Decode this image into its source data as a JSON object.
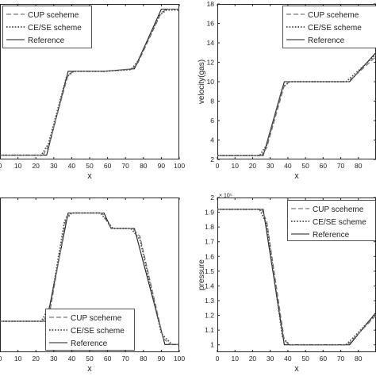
{
  "chart_data": [
    {
      "type": "line",
      "xlabel": "x",
      "ylabel": "",
      "xlim": [
        0,
        100
      ],
      "ylim": [
        0,
        18
      ],
      "x_ticks": [
        "0",
        "10",
        "20",
        "30",
        "40",
        "50",
        "60",
        "70",
        "80",
        "90",
        "100"
      ],
      "y_ticks": [],
      "exponent": "",
      "legend": [
        "CUP sceheme",
        "CE/SE scheme",
        "Reference"
      ],
      "legend_position": "top-left",
      "series": [
        {
          "name": "Reference",
          "x": [
            0,
            26,
            38,
            58,
            75,
            90,
            100
          ],
          "y": [
            0.5,
            0.5,
            10.2,
            10.2,
            10.5,
            17.4,
            17.4
          ]
        },
        {
          "name": "CUP sceheme",
          "x": [
            0,
            24,
            27,
            38,
            41,
            58,
            74,
            77,
            90,
            93,
            100
          ],
          "y": [
            0.5,
            0.5,
            1.5,
            9.8,
            10.2,
            10.2,
            10.5,
            11.2,
            17.0,
            17.4,
            17.4
          ]
        },
        {
          "name": "CE/SE scheme",
          "x": [
            0,
            23,
            27,
            37,
            41,
            58,
            73,
            77,
            89,
            93,
            100
          ],
          "y": [
            0.5,
            0.5,
            1.8,
            9.5,
            10.2,
            10.2,
            10.4,
            11.4,
            16.7,
            17.3,
            17.3
          ]
        }
      ]
    },
    {
      "type": "line",
      "xlabel": "x",
      "ylabel": "velocity(gas)",
      "xlim": [
        0,
        90
      ],
      "ylim": [
        2,
        18
      ],
      "x_ticks": [
        "0",
        "10",
        "20",
        "30",
        "40",
        "50",
        "60",
        "70",
        "80"
      ],
      "y_ticks": [
        "2",
        "4",
        "6",
        "8",
        "10",
        "12",
        "14",
        "16",
        "18"
      ],
      "exponent": "",
      "legend": [
        "CUP sceheme",
        "CE/SE scheme",
        "Reference"
      ],
      "legend_position": "top-right",
      "series": [
        {
          "name": "Reference",
          "x": [
            0,
            26,
            38,
            75,
            90
          ],
          "y": [
            2.4,
            2.4,
            10.0,
            10.0,
            13.0
          ]
        },
        {
          "name": "CUP sceheme",
          "x": [
            0,
            25,
            28,
            38,
            41,
            74,
            78,
            90
          ],
          "y": [
            2.4,
            2.4,
            3.2,
            9.6,
            10.0,
            10.0,
            10.6,
            12.6
          ]
        },
        {
          "name": "CE/SE scheme",
          "x": [
            0,
            24,
            28,
            37,
            41,
            73,
            78,
            90
          ],
          "y": [
            2.4,
            2.4,
            3.5,
            9.4,
            10.0,
            10.0,
            10.8,
            12.8
          ]
        }
      ]
    },
    {
      "type": "line",
      "xlabel": "x",
      "ylabel": "",
      "xlim": [
        0,
        100
      ],
      "ylim": [
        0,
        20
      ],
      "x_ticks": [
        "0",
        "10",
        "20",
        "30",
        "40",
        "50",
        "60",
        "70",
        "80",
        "90",
        "100"
      ],
      "y_ticks": [],
      "exponent": "",
      "legend": [
        "CUP sceheme",
        "CE/SE scheme",
        "Reference"
      ],
      "legend_position": "bottom-center",
      "series": [
        {
          "name": "Reference",
          "x": [
            0,
            26,
            38,
            58,
            62,
            75,
            92,
            100
          ],
          "y": [
            4.0,
            4.0,
            18.0,
            18.0,
            16.0,
            16.0,
            1.0,
            1.0
          ]
        },
        {
          "name": "CUP sceheme",
          "x": [
            0,
            24,
            28,
            37,
            40,
            57,
            62,
            74,
            78,
            91,
            95,
            100
          ],
          "y": [
            4.0,
            4.0,
            5.5,
            17.5,
            18.0,
            18.0,
            16.0,
            16.0,
            15.0,
            1.8,
            1.0,
            1.0
          ]
        },
        {
          "name": "CE/SE scheme",
          "x": [
            0,
            23,
            28,
            36,
            40,
            56,
            63,
            73,
            78,
            90,
            96,
            100
          ],
          "y": [
            4.0,
            4.0,
            6.0,
            17.0,
            18.0,
            18.0,
            16.0,
            16.0,
            14.6,
            2.4,
            1.0,
            1.0
          ]
        }
      ]
    },
    {
      "type": "line",
      "xlabel": "x",
      "ylabel": "pressure",
      "xlim": [
        0,
        90
      ],
      "ylim": [
        0.95,
        2.0
      ],
      "x_ticks": [
        "0",
        "10",
        "20",
        "30",
        "40",
        "50",
        "60",
        "70",
        "80"
      ],
      "y_ticks": [
        "1",
        "1.1",
        "1.2",
        "1.3",
        "1.4",
        "1.5",
        "1.6",
        "1.7",
        "1.8",
        "1.9",
        "2"
      ],
      "exponent": "× 10⁵",
      "legend": [
        "CUP sceheme",
        "CE/SE scheme",
        "Reference"
      ],
      "legend_position": "top-right",
      "series": [
        {
          "name": "Reference",
          "x": [
            0,
            26,
            38,
            75,
            90
          ],
          "y": [
            1.92,
            1.92,
            1.0,
            1.0,
            1.22
          ]
        },
        {
          "name": "CUP sceheme",
          "x": [
            0,
            25,
            28,
            38,
            41,
            74,
            78,
            90
          ],
          "y": [
            1.92,
            1.92,
            1.84,
            1.03,
            1.0,
            1.0,
            1.05,
            1.2
          ]
        },
        {
          "name": "CE/SE scheme",
          "x": [
            0,
            24,
            28,
            37,
            41,
            73,
            78,
            90
          ],
          "y": [
            1.92,
            1.92,
            1.82,
            1.05,
            1.0,
            1.0,
            1.06,
            1.21
          ]
        }
      ]
    }
  ],
  "style": {
    "axis_color": "#262626",
    "series_colors": {
      "Reference": "#1a1a1a",
      "CUP sceheme": "#7a7a7a",
      "CE/SE scheme": "#4a4a4a"
    }
  }
}
